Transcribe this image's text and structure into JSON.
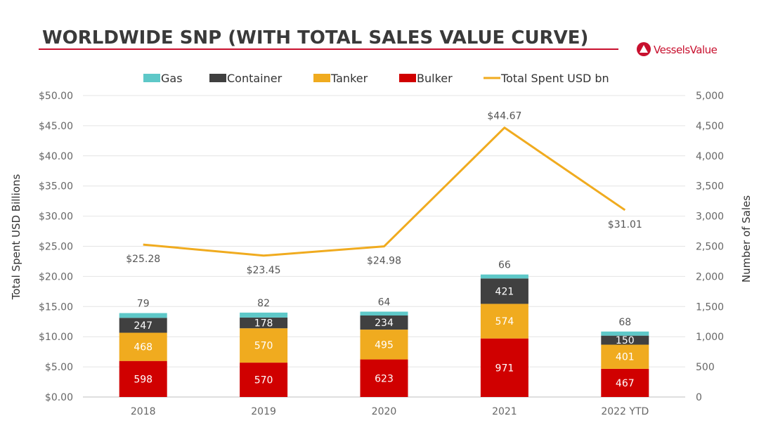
{
  "header": {
    "title": "WORLDWIDE SNP (WITH TOTAL SALES VALUE CURVE)",
    "brand": "VesselsValue"
  },
  "colors": {
    "gas": "#5ec8c8",
    "container": "#404040",
    "tanker": "#f0ab1f",
    "bulker": "#d00000",
    "line": "#f0ab1f",
    "title_rule": "#c8102e",
    "grid": "#e4e4e4"
  },
  "chart_data": {
    "type": "bar",
    "subtype": "stacked-bar-with-line",
    "categories": [
      "2018",
      "2019",
      "2020",
      "2021",
      "2022 YTD"
    ],
    "series": [
      {
        "name": "Bulker",
        "values": [
          598,
          570,
          623,
          971,
          467
        ]
      },
      {
        "name": "Tanker",
        "values": [
          468,
          570,
          495,
          574,
          401
        ]
      },
      {
        "name": "Container",
        "values": [
          247,
          178,
          234,
          421,
          150
        ]
      },
      {
        "name": "Gas",
        "values": [
          79,
          82,
          64,
          66,
          68
        ]
      }
    ],
    "line": {
      "name": "Total Spent USD bn",
      "values": [
        25.28,
        23.45,
        24.98,
        44.67,
        31.01
      ],
      "labels": [
        "$25.28",
        "$23.45",
        "$24.98",
        "$44.67",
        "$31.01"
      ]
    },
    "legend": [
      "Gas",
      "Container",
      "Tanker",
      "Bulker",
      "Total Spent USD bn"
    ],
    "legend_position": "top",
    "ylabel": "Total Spent USD Billions",
    "y2label": "Number of Sales",
    "ylim": [
      0,
      50
    ],
    "y2lim": [
      0,
      5000
    ],
    "yticks": [
      "$0.00",
      "$5.00",
      "$10.00",
      "$15.00",
      "$20.00",
      "$25.00",
      "$30.00",
      "$35.00",
      "$40.00",
      "$45.00",
      "$50.00"
    ],
    "y2ticks": [
      "0",
      "500",
      "1,000",
      "1,500",
      "2,000",
      "2,500",
      "3,000",
      "3,500",
      "4,000",
      "4,500",
      "5,000"
    ],
    "grid": true
  }
}
